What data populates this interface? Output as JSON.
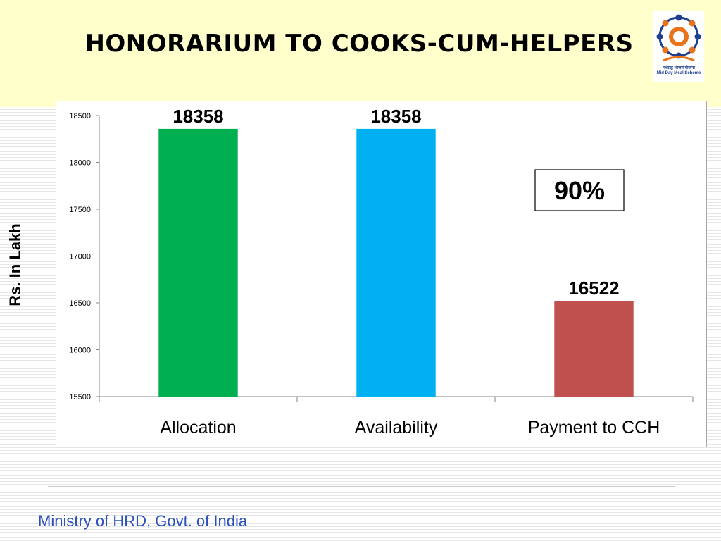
{
  "slide": {
    "title": "Honorarium to Cooks-cum-Helpers",
    "footer": "Ministry of HRD, Govt. of India"
  },
  "logo": {
    "icon": "mid-day-meal-logo",
    "caption_line1": "मध्याह्न भोजन योजना",
    "caption_line2": "Mid Day Meal Scheme"
  },
  "chart_data": {
    "type": "bar",
    "categories": [
      "Allocation",
      "Availability",
      "Payment to CCH"
    ],
    "values": [
      18358,
      18358,
      16522
    ],
    "data_labels": [
      "18358",
      "18358",
      "16522"
    ],
    "colors": [
      "#00b050",
      "#00b0f0",
      "#c0504d"
    ],
    "title": "",
    "xlabel": "",
    "ylabel": "Rs. In Lakh",
    "ylim": [
      15500,
      18500
    ],
    "yticks": [
      15500,
      16000,
      16500,
      17000,
      17500,
      18000,
      18500
    ],
    "grid": false,
    "annotation": "90%"
  }
}
